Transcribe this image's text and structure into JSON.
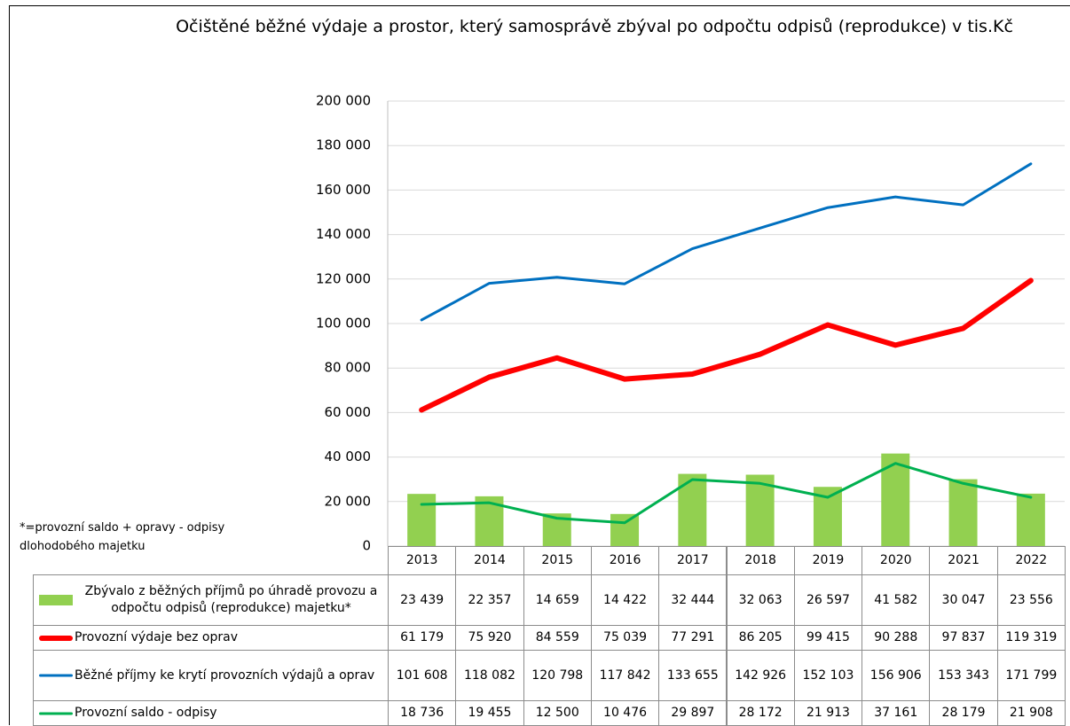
{
  "chart_data": {
    "type": "bar",
    "title": "Očištěné běžné výdaje a prostor, který samosprávě zbýval po odpočtu odpisů (reprodukce) v tis.Kč",
    "annotation": "*=provozní saldo + opravy - odpisy dlohodobého majetku",
    "categories": [
      "2013",
      "2014",
      "2015",
      "2016",
      "2017",
      "2018",
      "2019",
      "2020",
      "2021",
      "2022"
    ],
    "series": [
      {
        "name": "Zbývalo z běžných příjmů po úhradě provozu a odpočtu odpisů (reprodukce) majetku*",
        "type": "bar",
        "color": "#92d050",
        "values": [
          23439,
          22357,
          14659,
          14422,
          32444,
          32063,
          26597,
          41582,
          30047,
          23556
        ],
        "value_labels": [
          "23 439",
          "22 357",
          "14 659",
          "14 422",
          "32 444",
          "32 063",
          "26 597",
          "41 582",
          "30 047",
          "23 556"
        ]
      },
      {
        "name": "Provozní výdaje bez oprav",
        "type": "line",
        "color": "#ff0000",
        "width": 6,
        "values": [
          61179,
          75920,
          84559,
          75039,
          77291,
          86205,
          99415,
          90288,
          97837,
          119319
        ],
        "value_labels": [
          "61 179",
          "75 920",
          "84 559",
          "75 039",
          "77 291",
          "86 205",
          "99 415",
          "90 288",
          "97 837",
          "119 319"
        ]
      },
      {
        "name": "Běžné příjmy ke krytí provozních výdajů a oprav",
        "type": "line",
        "color": "#0070c0",
        "width": 3,
        "values": [
          101608,
          118082,
          120798,
          117842,
          133655,
          142926,
          152103,
          156906,
          153343,
          171799
        ],
        "value_labels": [
          "101 608",
          "118 082",
          "120 798",
          "117 842",
          "133 655",
          "142 926",
          "152 103",
          "156 906",
          "153 343",
          "171 799"
        ]
      },
      {
        "name": "Provozní saldo - odpisy",
        "type": "line",
        "color": "#00b050",
        "width": 3,
        "values": [
          18736,
          19455,
          12500,
          10476,
          29897,
          28172,
          21913,
          37161,
          28179,
          21908
        ],
        "value_labels": [
          "18 736",
          "19 455",
          "12 500",
          "10 476",
          "29 897",
          "28 172",
          "21 913",
          "37 161",
          "28 179",
          "21 908"
        ]
      }
    ],
    "ylim": [
      0,
      200000
    ],
    "yticks": [
      0,
      {
        "value": 20000,
        "label": "20 000"
      },
      {
        "value": 40000,
        "label": "40 000"
      },
      {
        "value": 60000,
        "label": "60 000"
      },
      {
        "value": 80000,
        "label": "80 000"
      },
      {
        "value": 100000,
        "label": "100 000"
      },
      {
        "value": 120000,
        "label": "120 000"
      },
      {
        "value": 140000,
        "label": "140 000"
      },
      {
        "value": 160000,
        "label": "160 000"
      },
      {
        "value": 180000,
        "label": "180 000"
      },
      {
        "value": 200000,
        "label": "200 000"
      }
    ],
    "grid": true
  }
}
